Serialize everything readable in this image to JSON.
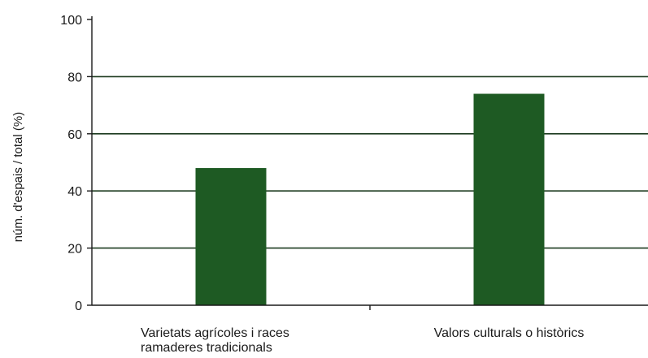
{
  "chart_data": {
    "type": "bar",
    "title": "",
    "xlabel": "",
    "ylabel": "núm. d'espais / total (%)",
    "ylim": [
      0,
      100
    ],
    "yticks": [
      0,
      20,
      40,
      60,
      80,
      100
    ],
    "grid": true,
    "bar_color": "#1e5a23",
    "grid_color": "#1c3a1f",
    "categories": [
      [
        "Varietats agrícoles i races",
        "ramaderes tradicionals"
      ],
      [
        "Valors culturals o històrics"
      ]
    ],
    "values": [
      48,
      74
    ]
  }
}
